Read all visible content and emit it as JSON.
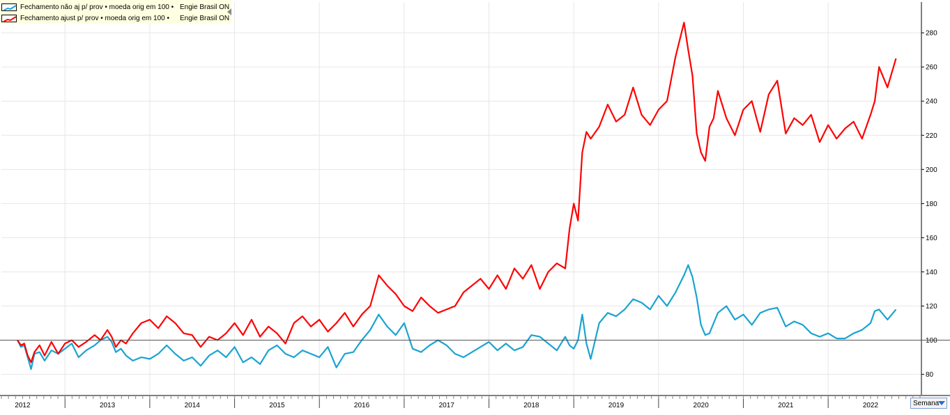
{
  "legend": {
    "series": [
      {
        "name": "Fechamento",
        "mode": "não aj p/ prov • moeda orig em 100 •",
        "asset": "Engie Brasil ON",
        "color": "#1aa3d2",
        "icon": "blue-line-chart-icon"
      },
      {
        "name": "Fechamento",
        "mode": "ajust p/ prov • moeda orig em 100 •",
        "asset": "Engie Brasil ON",
        "color": "#ff0000",
        "icon": "red-line-chart-icon"
      }
    ]
  },
  "period_selector": {
    "value": "Semana"
  },
  "chart_data": {
    "type": "line",
    "x_unit": "year",
    "ylim": [
      68,
      298
    ],
    "xlim": [
      2011.75,
      2022.6
    ],
    "y_ticks": [
      80,
      100,
      120,
      140,
      160,
      180,
      200,
      220,
      240,
      260,
      280
    ],
    "x_tick_labels": [
      {
        "label": "2012",
        "x": 2012.0
      },
      {
        "label": "2013",
        "x": 2013.0
      },
      {
        "label": "2014",
        "x": 2014.0
      },
      {
        "label": "2015",
        "x": 2015.0
      },
      {
        "label": "2016",
        "x": 2016.0
      },
      {
        "label": "2017",
        "x": 2017.0
      },
      {
        "label": "2018",
        "x": 2018.0
      },
      {
        "label": "2019",
        "x": 2019.0
      },
      {
        "label": "2020",
        "x": 2020.0
      },
      {
        "label": "2021",
        "x": 2021.0
      },
      {
        "label": "2022",
        "x": 2022.0
      }
    ],
    "baseline": 100,
    "grid": true,
    "legend_position": "top-left",
    "series": [
      {
        "name": "Fechamento não aj p/ prov • moeda orig em 100 • Engie Brasil ON",
        "color": "#1aa3d2",
        "x": [
          2011.94,
          2011.98,
          2012.02,
          2012.06,
          2012.1,
          2012.14,
          2012.2,
          2012.26,
          2012.34,
          2012.42,
          2012.5,
          2012.58,
          2012.66,
          2012.75,
          2012.85,
          2012.92,
          2013.0,
          2013.05,
          2013.1,
          2013.16,
          2013.22,
          2013.3,
          2013.4,
          2013.5,
          2013.6,
          2013.7,
          2013.8,
          2013.9,
          2014.0,
          2014.1,
          2014.2,
          2014.3,
          2014.4,
          2014.5,
          2014.6,
          2014.7,
          2014.8,
          2014.9,
          2015.0,
          2015.1,
          2015.2,
          2015.3,
          2015.4,
          2015.5,
          2015.6,
          2015.7,
          2015.8,
          2015.9,
          2016.0,
          2016.1,
          2016.2,
          2016.3,
          2016.4,
          2016.5,
          2016.6,
          2016.7,
          2016.8,
          2016.9,
          2017.0,
          2017.1,
          2017.2,
          2017.3,
          2017.4,
          2017.5,
          2017.6,
          2017.7,
          2017.8,
          2017.9,
          2018.0,
          2018.1,
          2018.2,
          2018.3,
          2018.4,
          2018.45,
          2018.5,
          2018.55,
          2018.6,
          2018.65,
          2018.7,
          2018.8,
          2018.9,
          2019.0,
          2019.1,
          2019.2,
          2019.3,
          2019.4,
          2019.5,
          2019.6,
          2019.7,
          2019.8,
          2019.85,
          2019.9,
          2019.95,
          2020.0,
          2020.05,
          2020.1,
          2020.15,
          2020.2,
          2020.3,
          2020.4,
          2020.5,
          2020.6,
          2020.7,
          2020.8,
          2020.9,
          2021.0,
          2021.1,
          2021.2,
          2021.3,
          2021.4,
          2021.5,
          2021.6,
          2021.7,
          2021.8,
          2021.9,
          2022.0,
          2022.05,
          2022.1,
          2022.2,
          2022.3
        ],
        "values": [
          100,
          96,
          97,
          90,
          83,
          92,
          93,
          88,
          94,
          92,
          95,
          98,
          90,
          94,
          97,
          100,
          102,
          99,
          93,
          95,
          91,
          88,
          90,
          89,
          92,
          97,
          92,
          88,
          90,
          85,
          91,
          94,
          90,
          96,
          87,
          90,
          86,
          94,
          97,
          92,
          90,
          94,
          92,
          90,
          96,
          84,
          92,
          93,
          100,
          106,
          115,
          108,
          103,
          110,
          95,
          93,
          97,
          100,
          97,
          92,
          90,
          93,
          96,
          99,
          94,
          98,
          94,
          96,
          103,
          102,
          98,
          94,
          102,
          97,
          95,
          100,
          115,
          98,
          89,
          110,
          116,
          114,
          118,
          124,
          122,
          118,
          126,
          120,
          128,
          138,
          144,
          137,
          125,
          109,
          103,
          104,
          110,
          116,
          120,
          112,
          115,
          109,
          116,
          118,
          119,
          108,
          111,
          109,
          104,
          102,
          104,
          101,
          101,
          104,
          106,
          110,
          117,
          118,
          112,
          118
        ]
      },
      {
        "name": "Fechamento ajust p/ prov • moeda orig em 100 • Engie Brasil ON",
        "color": "#ff0000",
        "x": [
          2011.94,
          2011.98,
          2012.02,
          2012.06,
          2012.1,
          2012.14,
          2012.2,
          2012.26,
          2012.34,
          2012.42,
          2012.5,
          2012.58,
          2012.66,
          2012.75,
          2012.85,
          2012.92,
          2013.0,
          2013.05,
          2013.1,
          2013.16,
          2013.22,
          2013.3,
          2013.4,
          2013.5,
          2013.6,
          2013.7,
          2013.8,
          2013.9,
          2014.0,
          2014.1,
          2014.2,
          2014.3,
          2014.4,
          2014.5,
          2014.6,
          2014.7,
          2014.8,
          2014.9,
          2015.0,
          2015.1,
          2015.2,
          2015.3,
          2015.4,
          2015.5,
          2015.6,
          2015.7,
          2015.8,
          2015.9,
          2016.0,
          2016.1,
          2016.2,
          2016.3,
          2016.4,
          2016.5,
          2016.6,
          2016.7,
          2016.8,
          2016.9,
          2017.0,
          2017.1,
          2017.2,
          2017.3,
          2017.4,
          2017.5,
          2017.6,
          2017.7,
          2017.8,
          2017.9,
          2018.0,
          2018.1,
          2018.2,
          2018.3,
          2018.4,
          2018.45,
          2018.5,
          2018.55,
          2018.6,
          2018.65,
          2018.7,
          2018.8,
          2018.9,
          2019.0,
          2019.1,
          2019.2,
          2019.3,
          2019.4,
          2019.5,
          2019.6,
          2019.7,
          2019.8,
          2019.85,
          2019.9,
          2019.95,
          2020.0,
          2020.05,
          2020.1,
          2020.15,
          2020.2,
          2020.3,
          2020.4,
          2020.5,
          2020.6,
          2020.7,
          2020.8,
          2020.9,
          2021.0,
          2021.1,
          2021.2,
          2021.3,
          2021.4,
          2021.5,
          2021.6,
          2021.7,
          2021.8,
          2021.9,
          2022.0,
          2022.05,
          2022.1,
          2022.2,
          2022.3
        ],
        "values": [
          100,
          97,
          98,
          91,
          87,
          93,
          97,
          91,
          99,
          92,
          98,
          100,
          96,
          99,
          103,
          100,
          106,
          102,
          96,
          100,
          98,
          104,
          110,
          112,
          107,
          114,
          110,
          104,
          103,
          96,
          102,
          100,
          104,
          110,
          103,
          112,
          102,
          108,
          104,
          98,
          110,
          114,
          108,
          112,
          105,
          110,
          116,
          108,
          115,
          120,
          138,
          132,
          127,
          120,
          117,
          125,
          120,
          116,
          118,
          120,
          128,
          132,
          136,
          130,
          138,
          130,
          142,
          136,
          144,
          130,
          140,
          145,
          142,
          165,
          180,
          170,
          210,
          222,
          218,
          225,
          238,
          228,
          232,
          248,
          232,
          226,
          235,
          240,
          266,
          286,
          270,
          255,
          221,
          210,
          205,
          225,
          230,
          246,
          230,
          220,
          235,
          240,
          222,
          244,
          252,
          221,
          230,
          226,
          232,
          216,
          226,
          218,
          224,
          228,
          218,
          232,
          240,
          260,
          248,
          265
        ]
      }
    ]
  }
}
